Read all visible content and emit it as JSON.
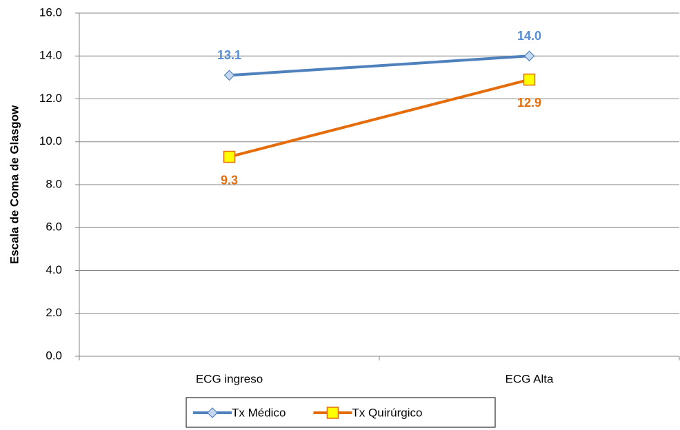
{
  "chart_data": {
    "type": "line",
    "ylabel": "Escala de Coma de Glasgow",
    "categories": [
      "ECG ingreso",
      "ECG Alta"
    ],
    "series": [
      {
        "name": "Tx Médico",
        "color": "#4f81bd",
        "marker": "diamond",
        "marker_fill": "#c6d9f1",
        "label_color": "#558ed5",
        "values": [
          13.1,
          14.0
        ],
        "value_labels": [
          "13.1",
          "14.0"
        ]
      },
      {
        "name": "Tx  Quirúrgico",
        "color": "#e46c0a",
        "marker": "square",
        "marker_fill": "#ffff00",
        "label_color": "#e46c0a",
        "values": [
          9.3,
          12.9
        ],
        "value_labels": [
          "9.3",
          "12.9"
        ]
      }
    ],
    "ylim": [
      0,
      16
    ],
    "yticks": [
      {
        "value": 0,
        "label": "0.0"
      },
      {
        "value": 2,
        "label": "2.0"
      },
      {
        "value": 4,
        "label": "4.0"
      },
      {
        "value": 6,
        "label": "6.0"
      },
      {
        "value": 8,
        "label": "8.0"
      },
      {
        "value": 10,
        "label": "10.0"
      },
      {
        "value": 12,
        "label": "12.0"
      },
      {
        "value": 14,
        "label": "14.0"
      },
      {
        "value": 16,
        "label": "16.0"
      }
    ],
    "grid": true,
    "legend": "bottom"
  }
}
